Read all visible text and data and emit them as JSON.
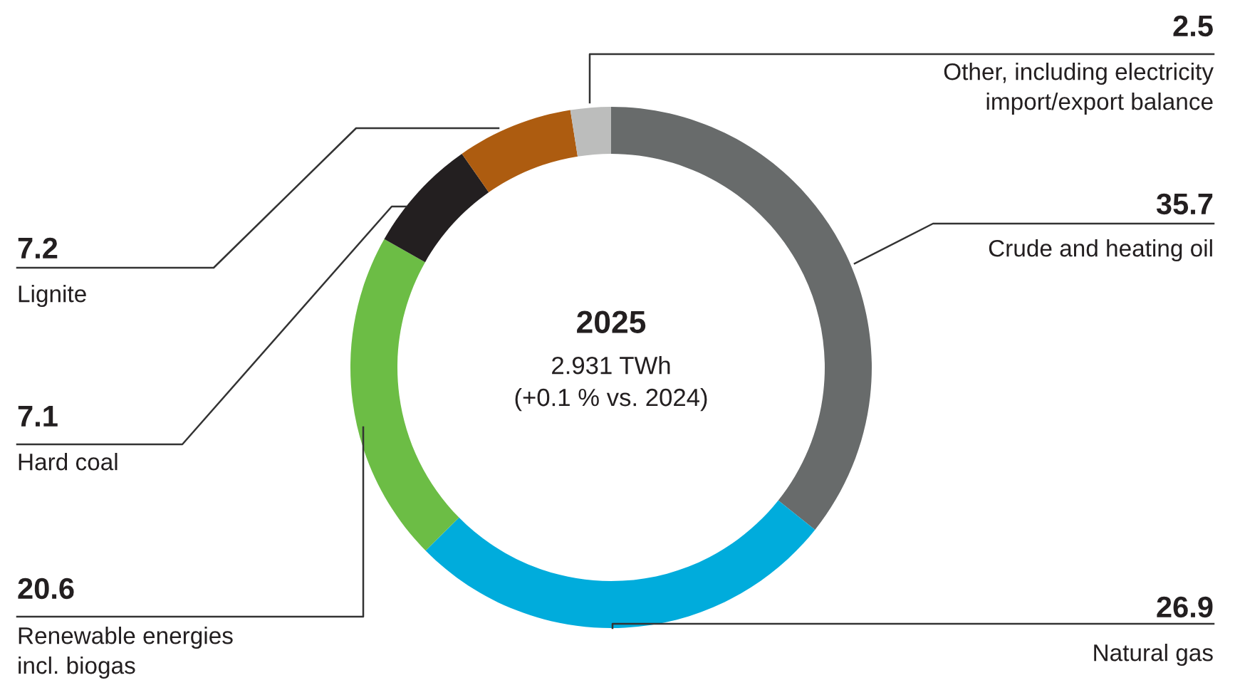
{
  "chart_data": {
    "type": "donut",
    "title": "2025",
    "subtitle": "2.931 TWh\n(+0.1 % vs. 2024)",
    "categories": [
      "Crude and heating oil",
      "Natural gas",
      "Renewable energies\nincl. biogas",
      "Hard coal",
      "Lignite",
      "Other, including electricity\nimport/export balance"
    ],
    "values": [
      35.7,
      26.9,
      20.6,
      7.1,
      7.2,
      2.5
    ],
    "colors": [
      "#686b6b",
      "#00acdc",
      "#6cbd45",
      "#231f20",
      "#ad5c10",
      "#bcbdbc"
    ],
    "data_labels": true,
    "legend": false
  }
}
